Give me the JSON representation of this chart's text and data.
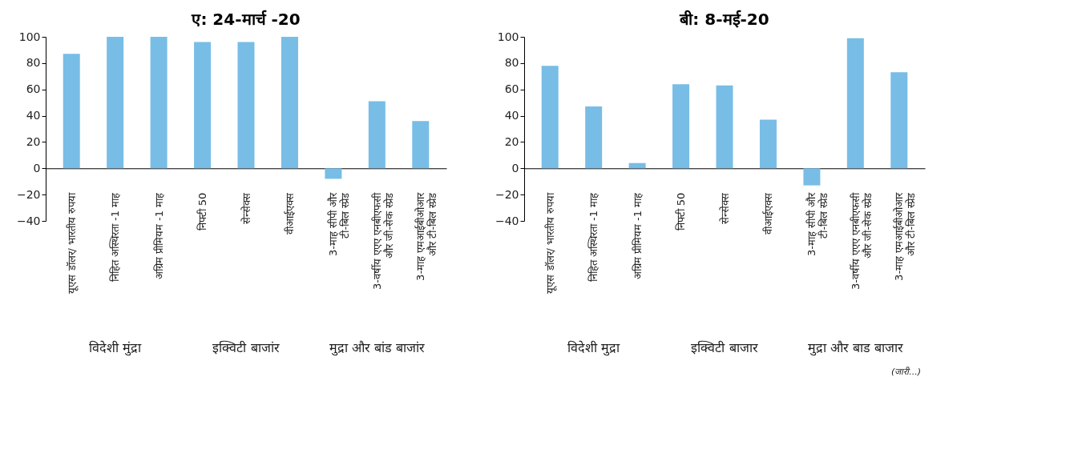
{
  "chart_data": [
    {
      "type": "bar",
      "title": "ए: 24-मार्च -20",
      "categories": [
        "यूएस डॉलर/ भारतीय रुपया",
        "निहित अस्थिरता -1 माह",
        "अग्रिम प्रीमियम -1 माह",
        "निफ्टी 50",
        "सेन्सेक्स",
        "वीआईएक्स",
        "3-माह सीपी और\nटी-बिल स्प्रेड",
        "3-वर्षीय एएए एनबीएफसी\nऔर जी-सेक स्प्रेड",
        "3-माह एमआईबीओआर\nऔर टी-बिल स्प्रेड"
      ],
      "values": [
        87,
        100,
        100,
        96,
        96,
        100,
        -8,
        51,
        36
      ],
      "color": "#78bde6",
      "ylim": [
        -40,
        100
      ],
      "yticks": [
        -40,
        -20,
        0,
        20,
        40,
        60,
        80,
        100
      ],
      "grid": false,
      "annotations": [
        "विदेशी मुंद्रा",
        "इक्विटी बाजांर",
        "मुद्रा और बांड बाजांर"
      ]
    },
    {
      "type": "bar",
      "title": "बी: 8-मई-20",
      "categories": [
        "यूएस डॉलर/ भारतीय रुपया",
        "निहित अस्थिरता -1 माह",
        "अग्रिम प्रीमियम -1 माह",
        "निफ्टी 50",
        "सेन्सेक्स",
        "वीआईएक्स",
        "3-माह सीपी और\nटी-बिल स्प्रेड",
        "3-वर्षीय एएए एनबीएफसी\nऔर जी-सेक स्प्रेड",
        "3-माह एमआईबीओआर\nऔर टी-बिल स्प्रेड"
      ],
      "values": [
        78,
        47,
        4,
        64,
        63,
        37,
        -13,
        99,
        73
      ],
      "color": "#78bde6",
      "ylim": [
        -40,
        100
      ],
      "yticks": [
        -40,
        -20,
        0,
        20,
        40,
        60,
        80,
        100
      ],
      "grid": false,
      "annotations": [
        "विदेशी मुद्रा",
        "इक्विटी बाजार",
        "मुद्रा और बाड बाजार",
        "(जारी...)"
      ]
    }
  ]
}
